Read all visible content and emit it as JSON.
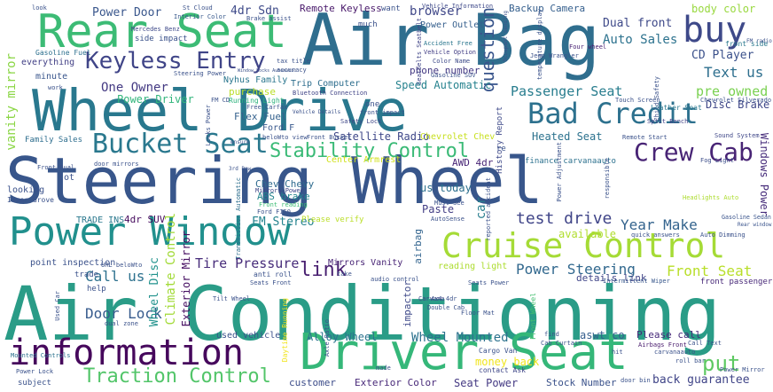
{
  "words": [
    {
      "text": "Air Conditioning",
      "color": "#2a9c87"
    },
    {
      "text": "Steering Wheel",
      "color": "#38568b"
    },
    {
      "text": "Air Bag",
      "color": "#2f6e8e"
    },
    {
      "text": "Wheel Drive",
      "color": "#29788e"
    },
    {
      "text": "Driver Seat",
      "color": "#35b779"
    },
    {
      "text": "Power Window",
      "color": "#21908d"
    },
    {
      "text": "Rear Seat",
      "color": "#3cbb75"
    },
    {
      "text": "information",
      "color": "#46085c"
    },
    {
      "text": "Cruise Control",
      "color": "#a5db36"
    },
    {
      "text": "Bad Credit",
      "color": "#2d718e"
    },
    {
      "text": "Bucket Seat",
      "color": "#2a788e"
    },
    {
      "text": "buy",
      "color": "#3e4989"
    },
    {
      "text": "Keyless Entry",
      "color": "#404588"
    },
    {
      "text": "Crew Cab",
      "color": "#482475"
    },
    {
      "text": "Stability Control",
      "color": "#3aba76"
    },
    {
      "text": "Traction Control",
      "color": "#52c569"
    },
    {
      "text": "put",
      "color": "#5ec962"
    },
    {
      "text": "link",
      "color": "#481f70"
    },
    {
      "text": "question",
      "color": "#39558c"
    },
    {
      "text": "Power Steering",
      "color": "#31688e"
    },
    {
      "text": "Front Seat",
      "color": "#b8de29"
    },
    {
      "text": "Door Lock",
      "color": "#375b8d"
    },
    {
      "text": "Wheel Mounted",
      "color": "#2c728e"
    },
    {
      "text": "One Owner",
      "color": "#443a83"
    },
    {
      "text": "Call us",
      "color": "#2d718e"
    },
    {
      "text": "test drive",
      "color": "#404588"
    },
    {
      "text": "Year Make",
      "color": "#33638d"
    },
    {
      "text": "Tire Pressure",
      "color": "#472c7a"
    },
    {
      "text": "Passenger Seat",
      "color": "#287d8e"
    },
    {
      "text": "Text us",
      "color": "#2e6f8e"
    },
    {
      "text": "pre owned",
      "color": "#7ad151"
    },
    {
      "text": "CD Player",
      "color": "#3b518b"
    },
    {
      "text": "Auto Sales",
      "color": "#2c728e"
    },
    {
      "text": "Power Door",
      "color": "#39568c"
    },
    {
      "text": "4dr Sdn",
      "color": "#3e4a89"
    },
    {
      "text": "vanity mirror",
      "color": "#8bd646"
    },
    {
      "text": "Climate Control",
      "color": "#a2da37"
    },
    {
      "text": "Wheel Disc",
      "color": "#20928c"
    },
    {
      "text": "browser",
      "color": "#3f4788"
    },
    {
      "text": "Heated Seat",
      "color": "#2c728e"
    },
    {
      "text": "Dual front",
      "color": "#3e4989"
    },
    {
      "text": "Satellite Radio",
      "color": "#3f4889"
    },
    {
      "text": "Exterior Mirror",
      "color": "#471063"
    },
    {
      "text": "FM Stereo",
      "color": "#25838e"
    },
    {
      "text": "Alloy Wheel",
      "color": "#2c738e"
    },
    {
      "text": "Seat Power",
      "color": "#443983"
    },
    {
      "text": "Speed Automatic",
      "color": "#26828e"
    },
    {
      "text": "money back",
      "color": "#f1e51d"
    },
    {
      "text": "back guarantee",
      "color": "#404588"
    },
    {
      "text": "body color",
      "color": "#98d83e"
    },
    {
      "text": "Disc Brake",
      "color": "#3f4788"
    },
    {
      "text": "Windows Power",
      "color": "#472d7b"
    },
    {
      "text": "Backup Camera",
      "color": "#355f8d"
    },
    {
      "text": "Remote Keyless",
      "color": "#48186a"
    },
    {
      "text": "Power Driver",
      "color": "#31b57b"
    },
    {
      "text": "Flex Fuel",
      "color": "#34618d"
    },
    {
      "text": "Stock Number",
      "color": "#3b528b"
    },
    {
      "text": "Exterior Color",
      "color": "#482979"
    },
    {
      "text": "customer",
      "color": "#3d4d8a"
    },
    {
      "text": "Please call",
      "color": "#472a7a"
    },
    {
      "text": "aswt co",
      "color": "#355e8d"
    },
    {
      "text": "available",
      "color": "#b0dd2f"
    },
    {
      "text": "Chev Chevy",
      "color": "#2f6b8e"
    },
    {
      "text": "ABS brake",
      "color": "#25858e"
    },
    {
      "text": "4dr SUV",
      "color": "#460b5e"
    },
    {
      "text": "Paste",
      "color": "#433e85"
    },
    {
      "text": "us today",
      "color": "#2d708e"
    },
    {
      "text": "AWD 4dr",
      "color": "#482576"
    },
    {
      "text": "car",
      "color": "#287d8e"
    },
    {
      "text": "Chevrolet Chev",
      "color": "#c8e020"
    },
    {
      "text": "Center Armrest",
      "color": "#d0e11c"
    },
    {
      "text": "Trip Computer",
      "color": "#2e6e8e"
    },
    {
      "text": "purchase",
      "color": "#bade28"
    },
    {
      "text": "Nyhus Family",
      "color": "#2a768e"
    },
    {
      "text": "Running Light",
      "color": "#2db27d"
    },
    {
      "text": "Power Outlet",
      "color": "#355f8d"
    },
    {
      "text": "Gasoline Fuel",
      "color": "#2d708e"
    },
    {
      "text": "everything",
      "color": "#424086"
    },
    {
      "text": "minute",
      "color": "#39558c"
    },
    {
      "text": "Family Sales",
      "color": "#2e6e8e"
    },
    {
      "text": "TRADE INS",
      "color": "#2a788e"
    },
    {
      "text": "point inspection",
      "color": "#3b528b"
    },
    {
      "text": "Mirrors Vanity",
      "color": "#482475"
    },
    {
      "text": "used vehicle",
      "color": "#3b528b"
    },
    {
      "text": "impactor",
      "color": "#3e4989"
    },
    {
      "text": "airbag",
      "color": "#32648e"
    },
    {
      "text": "reading light",
      "color": "#addc30"
    },
    {
      "text": "details link",
      "color": "#404588"
    },
    {
      "text": "Mounted Controls",
      "color": "#2c728e"
    },
    {
      "text": "Please verify",
      "color": "#bade28"
    },
    {
      "text": "Daytime Running",
      "color": "#f1e51d"
    },
    {
      "text": "Front Wheel",
      "color": "#44bf70"
    },
    {
      "text": "History Report",
      "color": "#3e4989"
    },
    {
      "text": "front passenger",
      "color": "#472878"
    },
    {
      "text": "Transmission Automatic",
      "color": "#2e6f8e"
    },
    {
      "text": "Leather Seat",
      "color": "#2a788e"
    },
    {
      "text": "Sound System",
      "color": "#3f4788"
    },
    {
      "text": "finance carvanaauto",
      "color": "#2c718e"
    },
    {
      "text": "Airbags Front",
      "color": "#481b6d"
    },
    {
      "text": "Headlights Auto",
      "color": "#addc30"
    },
    {
      "text": "Gasoline Sedan",
      "color": "#3a548c"
    },
    {
      "text": "Fog Light",
      "color": "#3d4e8a"
    },
    {
      "text": "Ford F",
      "color": "#38588c"
    },
    {
      "text": "Front Bucket",
      "color": "#3b528b"
    },
    {
      "text": "Front reading",
      "color": "#3dbc74"
    },
    {
      "text": "Mirrors Power",
      "color": "#3f4788"
    },
    {
      "text": "phone number",
      "color": "#443983"
    },
    {
      "text": "Color Name",
      "color": "#3e4a89"
    },
    {
      "text": "Vehicle Option",
      "color": "#433e85"
    },
    {
      "text": "Accident Free",
      "color": "#2a768e"
    },
    {
      "text": "front side",
      "color": "#2a788e"
    },
    {
      "text": "Four wheel",
      "color": "#482173"
    },
    {
      "text": "Jeep Wrangler",
      "color": "#3b528b"
    },
    {
      "text": "Steering Power",
      "color": "#3b528b"
    },
    {
      "text": "Mercedes Benz",
      "color": "#3e4989"
    },
    {
      "text": "side impact",
      "color": "#3b528b"
    },
    {
      "text": "St Cloud",
      "color": "#3b528b"
    },
    {
      "text": "Interior Color",
      "color": "#38598c"
    },
    {
      "text": "Vehicle Information",
      "color": "#3e4989"
    },
    {
      "text": "Seatbelts Seatbelt",
      "color": "#404588"
    },
    {
      "text": "Bluetooth Connection",
      "color": "#414487"
    },
    {
      "text": "Safety Lock",
      "color": "#3f4788"
    },
    {
      "text": "Split Bench",
      "color": "#414287"
    },
    {
      "text": "Remote Start",
      "color": "#3b528b"
    },
    {
      "text": "Rear window",
      "color": "#3a548c"
    },
    {
      "text": "Auto Dimming",
      "color": "#3b528b"
    },
    {
      "text": "Intermittent Wiper",
      "color": "#38588c"
    },
    {
      "text": "Carvana",
      "color": "#3f4788"
    },
    {
      "text": "Double Cab",
      "color": "#3b528b"
    },
    {
      "text": "Floor Mat",
      "color": "#3b528b"
    },
    {
      "text": "Cargo Van",
      "color": "#3b528b"
    },
    {
      "text": "contact Ask",
      "color": "#3f4788"
    },
    {
      "text": "subject",
      "color": "#3b528b"
    },
    {
      "text": "Power Lock",
      "color": "#3b528b"
    },
    {
      "text": "Seats Power",
      "color": "#3b528b"
    },
    {
      "text": "Axle Ratio",
      "color": "#3b528b"
    },
    {
      "text": "dual zone",
      "color": "#3b528b"
    },
    {
      "text": "Tilt Wheel",
      "color": "#3b528b"
    },
    {
      "text": "Seats Front",
      "color": "#3b528b"
    },
    {
      "text": "anti roll",
      "color": "#3b528b"
    },
    {
      "text": "trade",
      "color": "#3b528b"
    },
    {
      "text": "help",
      "color": "#3b528b"
    },
    {
      "text": "Used Car",
      "color": "#3b528b"
    },
    {
      "text": "Inver Grove",
      "color": "#3b528b"
    },
    {
      "text": "looking",
      "color": "#3b528b"
    },
    {
      "text": "lot",
      "color": "#3b528b"
    },
    {
      "text": "Front Dual",
      "color": "#3b528b"
    },
    {
      "text": "door mirrors",
      "color": "#3b528b"
    },
    {
      "text": "work",
      "color": "#3b528b"
    },
    {
      "text": "much",
      "color": "#3b528b"
    },
    {
      "text": "want",
      "color": "#3b528b"
    },
    {
      "text": "look",
      "color": "#3b528b"
    },
    {
      "text": "tax title",
      "color": "#3b528b"
    },
    {
      "text": "accuracy",
      "color": "#3b528b"
    },
    {
      "text": "Brake assist",
      "color": "#3b528b"
    },
    {
      "text": "Occupant sensing",
      "color": "#3b528b"
    },
    {
      "text": "temperature display",
      "color": "#3b528b"
    },
    {
      "text": "Touch Screen",
      "color": "#3b528b"
    },
    {
      "text": "Chevrolet Silverado",
      "color": "#3b528b"
    },
    {
      "text": "Child Safety",
      "color": "#3b528b"
    },
    {
      "text": "FM radio",
      "color": "#3b528b"
    },
    {
      "text": "quick answers",
      "color": "#3b528b"
    },
    {
      "text": "responsible",
      "color": "#3b528b"
    },
    {
      "text": "Power Adjustment",
      "color": "#3b528b"
    },
    {
      "text": "AutoSense",
      "color": "#3b528b"
    },
    {
      "text": "reported accident",
      "color": "#3b528b"
    },
    {
      "text": "Must See",
      "color": "#3b528b"
    },
    {
      "text": "carvanaauto",
      "color": "#3b528b"
    },
    {
      "text": "Call Text",
      "color": "#3b528b"
    },
    {
      "text": "roll bar",
      "color": "#3b528b"
    },
    {
      "text": "Power Mirror",
      "color": "#3b528b"
    },
    {
      "text": "door bin",
      "color": "#3b528b"
    },
    {
      "text": "hit",
      "color": "#3b528b"
    },
    {
      "text": "find",
      "color": "#3b528b"
    },
    {
      "text": "Cab Curtain",
      "color": "#3b528b"
    },
    {
      "text": "made",
      "color": "#3b528b"
    },
    {
      "text": "4x4 4dr",
      "color": "#3b528b"
    },
    {
      "text": "audio control",
      "color": "#3b528b"
    },
    {
      "text": "take",
      "color": "#3b528b"
    },
    {
      "text": "URL beloWto",
      "color": "#3b528b"
    },
    {
      "text": "Ford F150",
      "color": "#3b528b"
    },
    {
      "text": "3rd Row",
      "color": "#3b528b"
    },
    {
      "text": "beloWto view",
      "color": "#3b528b"
    },
    {
      "text": "ensure",
      "color": "#3b528b"
    },
    {
      "text": "Locks Power",
      "color": "#3b528b"
    },
    {
      "text": "FM CD",
      "color": "#3b528b"
    },
    {
      "text": "one",
      "color": "#3b528b"
    },
    {
      "text": "front impact",
      "color": "#3b528b"
    },
    {
      "text": "Free Carfax",
      "color": "#3b528b"
    },
    {
      "text": "re",
      "color": "#3b528b"
    },
    {
      "text": "Gasoline SUV",
      "color": "#3b528b"
    },
    {
      "text": "Window Locks Automatic",
      "color": "#3b528b"
    },
    {
      "text": "Vehicle Details",
      "color": "#3b528b"
    }
  ]
}
